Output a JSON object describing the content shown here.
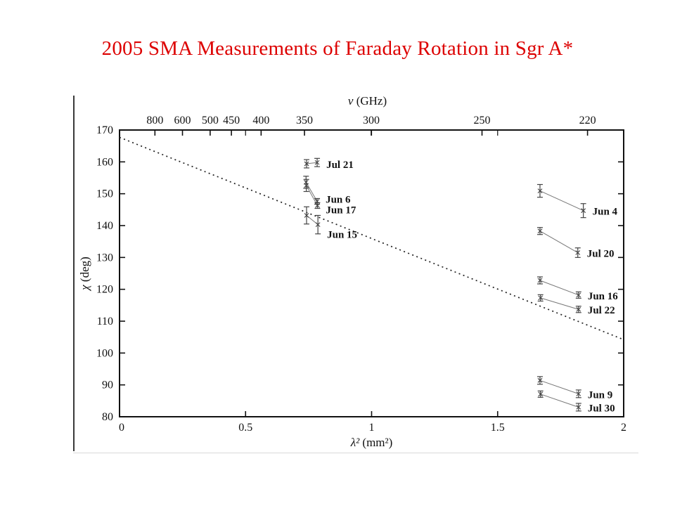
{
  "title": {
    "text": "2005 SMA Measurements of Faraday Rotation in Sgr A*",
    "color": "#dd0000"
  },
  "chart_data": {
    "type": "scatter",
    "description": "Polarization position angle vs wavelength squared with error bars, paired sideband measurements connected by lines, dotted rotation-measure fit line",
    "xlabel": {
      "sym": "λ²",
      "unit": " (mm²)"
    },
    "ylabel": {
      "sym": "χ",
      "unit": " (deg)"
    },
    "top_label": {
      "sym": "ν",
      "unit": " (GHz)"
    },
    "xlim": [
      0,
      2
    ],
    "ylim": [
      80,
      170
    ],
    "grid": false,
    "x_ticks": [
      {
        "v": 0,
        "label": "0"
      },
      {
        "v": 0.5,
        "label": "0.5"
      },
      {
        "v": 1,
        "label": "1"
      },
      {
        "v": 1.5,
        "label": "1.5"
      },
      {
        "v": 2,
        "label": "2"
      }
    ],
    "y_ticks": [
      {
        "v": 80,
        "label": "80"
      },
      {
        "v": 90,
        "label": "90"
      },
      {
        "v": 100,
        "label": "100"
      },
      {
        "v": 110,
        "label": "110"
      },
      {
        "v": 120,
        "label": "120"
      },
      {
        "v": 130,
        "label": "130"
      },
      {
        "v": 140,
        "label": "140"
      },
      {
        "v": 150,
        "label": "150"
      },
      {
        "v": 160,
        "label": "160"
      },
      {
        "v": 170,
        "label": "170"
      }
    ],
    "top_ticks": [
      {
        "label": "800",
        "lambda2": 0.1404
      },
      {
        "label": "600",
        "lambda2": 0.2497
      },
      {
        "label": "500",
        "lambda2": 0.3595
      },
      {
        "label": "450",
        "lambda2": 0.4438
      },
      {
        "label": "400",
        "lambda2": 0.5617
      },
      {
        "label": "350",
        "lambda2": 0.7337
      },
      {
        "label": "300",
        "lambda2": 0.9986
      },
      {
        "label": "250",
        "lambda2": 1.438
      },
      {
        "label": "220",
        "lambda2": 1.8566
      }
    ],
    "trend_line": {
      "style": "dotted",
      "x": [
        0,
        2
      ],
      "y": [
        167.7,
        104.2
      ]
    },
    "series": [
      {
        "label": "Jul 21",
        "label_offset": [
          13,
          3
        ],
        "points": [
          {
            "x": 0.742,
            "y": 159.4,
            "err": 1.3
          },
          {
            "x": 0.784,
            "y": 159.8,
            "err": 1.3
          }
        ]
      },
      {
        "label": "Jun 6",
        "label_offset": [
          12,
          -3
        ],
        "points": [
          {
            "x": 0.74,
            "y": 153.6,
            "err": 1.9
          },
          {
            "x": 0.784,
            "y": 147.6,
            "err": 0.9
          }
        ]
      },
      {
        "label": "Jun 17",
        "label_offset": [
          12,
          6
        ],
        "points": [
          {
            "x": 0.741,
            "y": 152.6,
            "err": 1.9
          },
          {
            "x": 0.785,
            "y": 146.3,
            "err": 0.9
          }
        ]
      },
      {
        "label": "Jun 15",
        "label_offset": [
          13,
          14
        ],
        "points": [
          {
            "x": 0.742,
            "y": 143.2,
            "err": 2.7
          },
          {
            "x": 0.787,
            "y": 140.3,
            "err": 2.9
          }
        ]
      },
      {
        "label": "Jun 4",
        "label_offset": [
          13,
          1
        ],
        "points": [
          {
            "x": 1.668,
            "y": 150.9,
            "err": 2.0
          },
          {
            "x": 1.84,
            "y": 144.7,
            "err": 2.2
          }
        ]
      },
      {
        "label": "Jul 20",
        "label_offset": [
          13,
          1
        ],
        "points": [
          {
            "x": 1.668,
            "y": 138.3,
            "err": 1.1
          },
          {
            "x": 1.818,
            "y": 131.5,
            "err": 1.5
          }
        ]
      },
      {
        "label": "Jun 16",
        "label_offset": [
          13,
          1
        ],
        "points": [
          {
            "x": 1.668,
            "y": 122.8,
            "err": 1.1
          },
          {
            "x": 1.821,
            "y": 118.2,
            "err": 1.0
          }
        ]
      },
      {
        "label": "Jul 22",
        "label_offset": [
          13,
          1
        ],
        "points": [
          {
            "x": 1.67,
            "y": 117.3,
            "err": 1.0
          },
          {
            "x": 1.821,
            "y": 113.7,
            "err": 1.0
          }
        ]
      },
      {
        "label": "Jun 9",
        "label_offset": [
          13,
          1
        ],
        "points": [
          {
            "x": 1.668,
            "y": 91.4,
            "err": 1.2
          },
          {
            "x": 1.821,
            "y": 87.2,
            "err": 1.2
          }
        ]
      },
      {
        "label": "Jul 30",
        "label_offset": [
          13,
          1
        ],
        "points": [
          {
            "x": 1.67,
            "y": 87.1,
            "err": 1.0
          },
          {
            "x": 1.821,
            "y": 83.0,
            "err": 1.2
          }
        ]
      }
    ],
    "colors": {
      "axes": "#111111",
      "data": "#444444",
      "connector": "#777777",
      "trend": "#222222"
    }
  }
}
